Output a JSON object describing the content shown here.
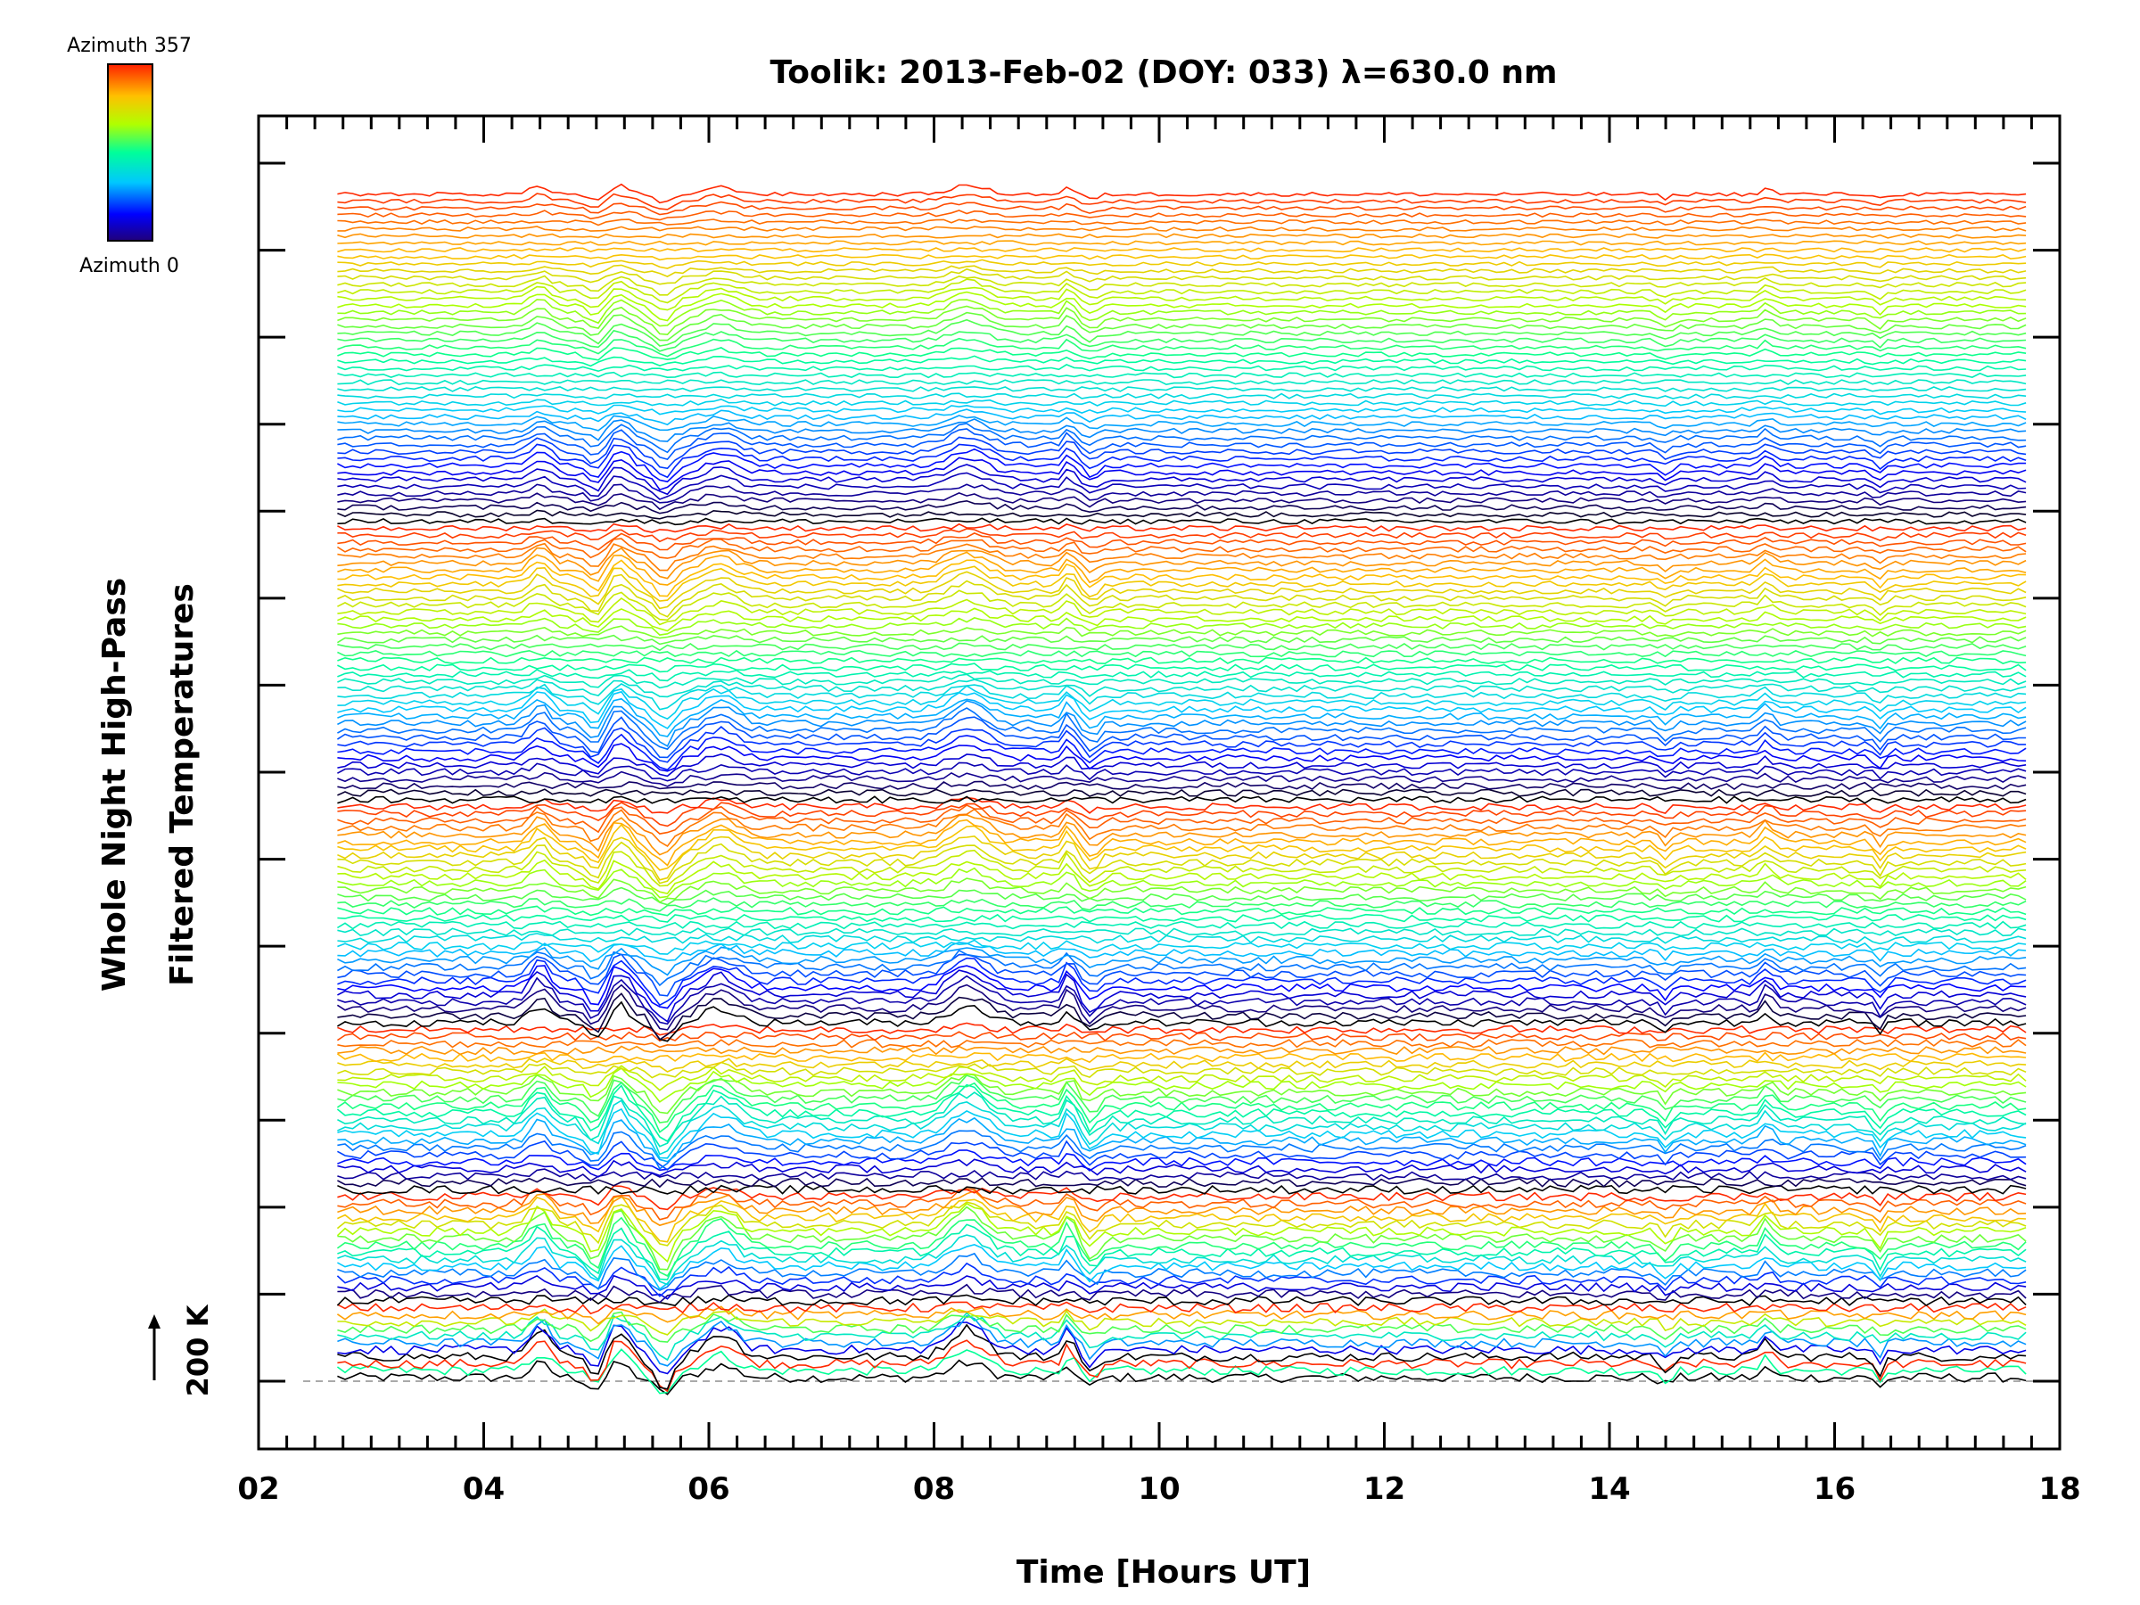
{
  "chart_data": {
    "type": "line",
    "title": "Toolik: 2013-Feb-02 (DOY: 033) λ=630.0 nm",
    "xlabel": "Time [Hours UT]",
    "ylabel_line1": "Whole Night High-Pass",
    "ylabel_line2": "Filtered Temperatures",
    "xlim": [
      2,
      18
    ],
    "x_ticks": [
      2,
      4,
      6,
      8,
      10,
      12,
      14,
      16,
      18
    ],
    "x_tick_labels": [
      "02",
      "04",
      "06",
      "08",
      "10",
      "12",
      "14",
      "16",
      "18"
    ],
    "data_x_range": [
      2.7,
      17.7
    ],
    "scale_bar_label": "200 K",
    "colorbar": {
      "colormap": "rainbow",
      "max_label": "Azimuth 357",
      "min_label": "Azimuth 0"
    },
    "grid": false,
    "legend": "colorbar top-left",
    "trace_groups": [
      {
        "name": "group-1",
        "traces": 3
      },
      {
        "name": "group-2",
        "traces": 8
      },
      {
        "name": "group-3",
        "traces": 16
      },
      {
        "name": "group-4",
        "traces": 24
      },
      {
        "name": "group-5",
        "traces": 32
      },
      {
        "name": "group-6",
        "traces": 40
      },
      {
        "name": "group-7",
        "traces": 48
      }
    ],
    "features": [
      {
        "x": 4.5,
        "amp": 1.0,
        "width": 0.12
      },
      {
        "x": 5.0,
        "amp": -0.9,
        "width": 0.1
      },
      {
        "x": 5.2,
        "amp": 1.1,
        "width": 0.12
      },
      {
        "x": 5.6,
        "amp": -1.2,
        "width": 0.12
      },
      {
        "x": 6.1,
        "amp": 0.9,
        "width": 0.2
      },
      {
        "x": 8.3,
        "amp": 1.1,
        "width": 0.22
      },
      {
        "x": 9.2,
        "amp": 0.9,
        "width": 0.06
      },
      {
        "x": 9.4,
        "amp": -0.7,
        "width": 0.08
      },
      {
        "x": 14.5,
        "amp": -0.5,
        "width": 0.07
      },
      {
        "x": 15.4,
        "amp": 0.7,
        "width": 0.07
      },
      {
        "x": 16.4,
        "amp": -0.6,
        "width": 0.06
      }
    ]
  }
}
